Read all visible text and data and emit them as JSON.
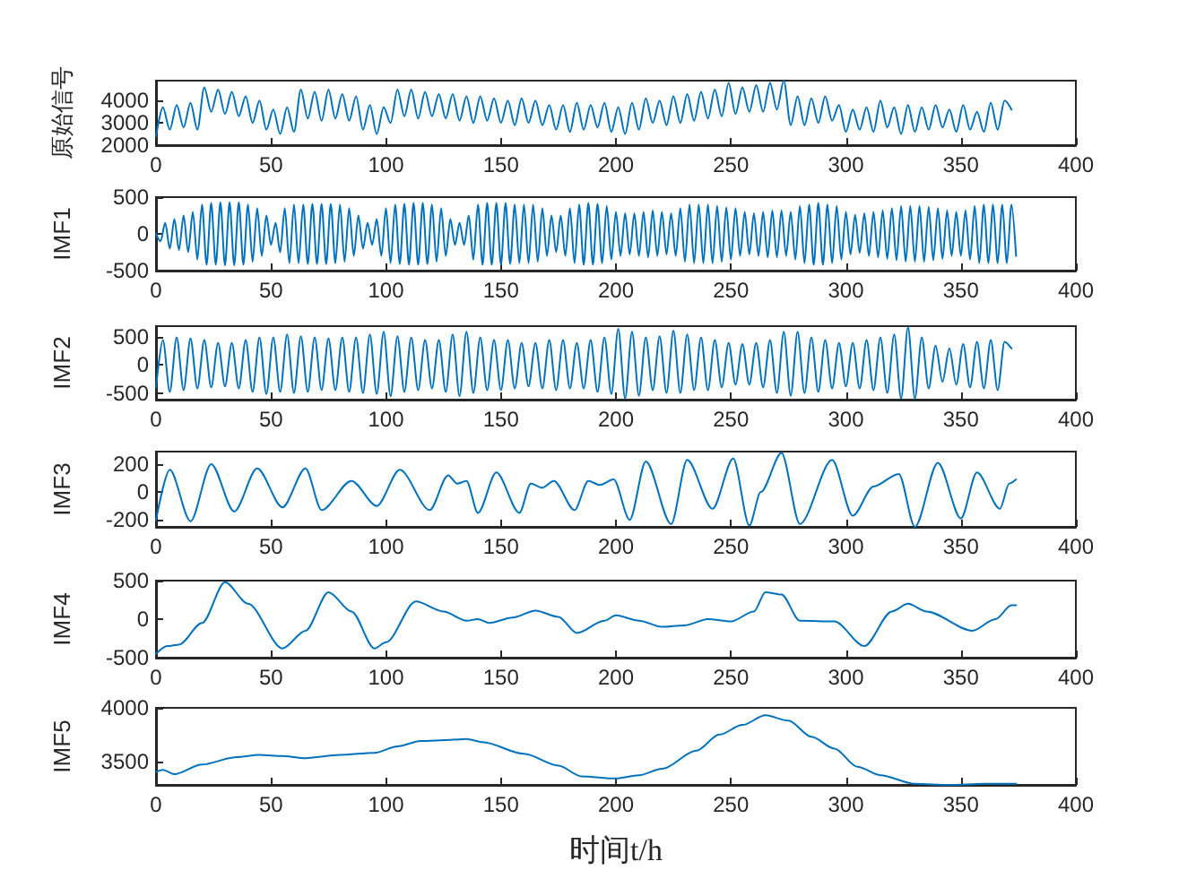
{
  "chart_data": [
    {
      "type": "line",
      "ylabel": "原始信号",
      "color": "#0072bd",
      "marker": "none",
      "xlim": [
        0,
        400
      ],
      "xticks": [
        0,
        50,
        100,
        150,
        200,
        250,
        300,
        350,
        400
      ],
      "ylim": [
        2000,
        4900
      ],
      "yticks": [
        2000,
        3000,
        4000
      ],
      "x": [
        0,
        3,
        6,
        9,
        12,
        15,
        18,
        21,
        24,
        27,
        30,
        33,
        36,
        39,
        42,
        45,
        48,
        51,
        54,
        57,
        60,
        63,
        66,
        69,
        72,
        75,
        78,
        81,
        84,
        87,
        90,
        93,
        96,
        99,
        102,
        105,
        108,
        111,
        114,
        117,
        120,
        123,
        126,
        129,
        132,
        135,
        138,
        141,
        144,
        147,
        150,
        153,
        156,
        159,
        162,
        165,
        168,
        171,
        174,
        177,
        180,
        183,
        186,
        189,
        192,
        195,
        198,
        201,
        204,
        207,
        210,
        213,
        216,
        219,
        222,
        225,
        228,
        231,
        234,
        237,
        240,
        243,
        246,
        249,
        252,
        255,
        258,
        261,
        264,
        267,
        270,
        273,
        276,
        279,
        282,
        285,
        288,
        291,
        294,
        297,
        300,
        303,
        306,
        309,
        312,
        315,
        318,
        321,
        324,
        327,
        330,
        333,
        336,
        339,
        342,
        345,
        348,
        351,
        354,
        357,
        360,
        363,
        366,
        369,
        372
      ],
      "values": [
        2400,
        3700,
        2700,
        3800,
        2800,
        3900,
        2700,
        4600,
        3500,
        4500,
        3400,
        4400,
        3300,
        4200,
        3000,
        4000,
        2700,
        3600,
        2500,
        3700,
        2600,
        4500,
        3200,
        4400,
        3100,
        4500,
        3200,
        4300,
        3100,
        4200,
        2700,
        3800,
        2500,
        3700,
        3000,
        4500,
        3300,
        4500,
        3200,
        4400,
        3300,
        4300,
        3200,
        4300,
        3100,
        4200,
        3000,
        4200,
        3100,
        4100,
        3000,
        4000,
        2900,
        4100,
        3000,
        4000,
        2900,
        3800,
        2700,
        3800,
        2600,
        3900,
        2700,
        3800,
        2800,
        3900,
        2600,
        3700,
        2500,
        3900,
        2700,
        4100,
        3000,
        4000,
        2900,
        4200,
        3000,
        4300,
        3100,
        4400,
        3200,
        4500,
        3300,
        4800,
        3400,
        4600,
        3500,
        4700,
        3500,
        4800,
        3600,
        4900,
        2900,
        4200,
        2900,
        4100,
        3000,
        4200,
        3100,
        3800,
        2600,
        3600,
        2700,
        3700,
        2600,
        4000,
        2800,
        3700,
        2500,
        3800,
        2600,
        3700,
        2700,
        3800,
        2800,
        3600,
        2600,
        3800,
        2700,
        3500,
        2600,
        3900,
        2700,
        4000,
        3600
      ]
    },
    {
      "type": "line",
      "ylabel": "IMF1",
      "color": "#0072bd",
      "marker": "none",
      "xlim": [
        0,
        400
      ],
      "xticks": [
        0,
        50,
        100,
        150,
        200,
        250,
        300,
        350,
        400
      ],
      "ylim": [
        -500,
        500
      ],
      "yticks": [
        -500,
        0,
        500
      ],
      "x": [
        0,
        2,
        4,
        6,
        8,
        10,
        12,
        14,
        16,
        18,
        20,
        22,
        24,
        26,
        28,
        30,
        32,
        34,
        36,
        38,
        40,
        42,
        44,
        46,
        48,
        50,
        52,
        54,
        56,
        58,
        60,
        62,
        64,
        66,
        68,
        70,
        72,
        74,
        76,
        78,
        80,
        82,
        84,
        86,
        88,
        90,
        92,
        94,
        96,
        98,
        100,
        102,
        104,
        106,
        108,
        110,
        112,
        114,
        116,
        118,
        120,
        122,
        124,
        126,
        128,
        130,
        132,
        134,
        136,
        138,
        140,
        142,
        144,
        146,
        148,
        150,
        152,
        154,
        156,
        158,
        160,
        162,
        164,
        166,
        168,
        170,
        172,
        174,
        176,
        178,
        180,
        182,
        184,
        186,
        188,
        190,
        192,
        194,
        196,
        198,
        200,
        202,
        204,
        206,
        208,
        210,
        212,
        214,
        216,
        218,
        220,
        222,
        224,
        226,
        228,
        230,
        232,
        234,
        236,
        238,
        240,
        242,
        244,
        246,
        248,
        250,
        252,
        254,
        256,
        258,
        260,
        262,
        264,
        266,
        268,
        270,
        272,
        274,
        276,
        278,
        280,
        282,
        284,
        286,
        288,
        290,
        292,
        294,
        296,
        298,
        300,
        302,
        304,
        306,
        308,
        310,
        312,
        314,
        316,
        318,
        320,
        322,
        324,
        326,
        328,
        330,
        332,
        334,
        336,
        338,
        340,
        342,
        344,
        346,
        348,
        350,
        352,
        354,
        356,
        358,
        360,
        362,
        364,
        366,
        368,
        370,
        372,
        374
      ],
      "values": [
        0,
        -100,
        150,
        -200,
        200,
        -220,
        250,
        -250,
        300,
        -350,
        400,
        -420,
        420,
        -420,
        430,
        -430,
        430,
        -430,
        430,
        -420,
        400,
        -380,
        350,
        -300,
        250,
        -150,
        150,
        -250,
        350,
        -400,
        400,
        -400,
        400,
        -410,
        410,
        -410,
        410,
        -410,
        410,
        -400,
        400,
        -380,
        350,
        -300,
        250,
        -200,
        150,
        -150,
        200,
        -300,
        350,
        -400,
        400,
        -410,
        410,
        -420,
        420,
        -420,
        420,
        -410,
        400,
        -380,
        350,
        -300,
        200,
        -150,
        150,
        -150,
        250,
        -350,
        400,
        -420,
        420,
        -420,
        420,
        -420,
        420,
        -410,
        400,
        -400,
        400,
        -400,
        400,
        -380,
        350,
        -300,
        250,
        -250,
        250,
        -300,
        350,
        -400,
        400,
        -420,
        420,
        -420,
        410,
        -400,
        380,
        -350,
        300,
        -300,
        280,
        -280,
        280,
        -300,
        300,
        -320,
        320,
        -300,
        300,
        -280,
        280,
        -300,
        350,
        -380,
        400,
        -400,
        400,
        -400,
        400,
        -400,
        380,
        -380,
        360,
        -350,
        350,
        -300,
        300,
        -280,
        280,
        -300,
        300,
        -320,
        320,
        -320,
        320,
        -300,
        300,
        -350,
        380,
        -400,
        400,
        -420,
        420,
        -420,
        400,
        -400,
        380,
        -350,
        300,
        -280,
        260,
        -260,
        280,
        -300,
        300,
        -320,
        320,
        -340,
        350,
        -360,
        380,
        -380,
        380,
        -380,
        380,
        -380,
        370,
        -360,
        350,
        -340,
        320,
        -300,
        300,
        -300,
        320,
        -350,
        380,
        -400,
        400,
        -400,
        400,
        -400,
        400,
        -400,
        400,
        -300
      ]
    },
    {
      "type": "line",
      "ylabel": "IMF2",
      "color": "#0072bd",
      "marker": "none",
      "xlim": [
        0,
        400
      ],
      "xticks": [
        0,
        50,
        100,
        150,
        200,
        250,
        300,
        350,
        400
      ],
      "ylim": [
        -620,
        700
      ],
      "yticks": [
        -500,
        0,
        500
      ],
      "x": [
        0,
        3,
        6,
        9,
        12,
        15,
        18,
        21,
        24,
        27,
        30,
        33,
        36,
        39,
        42,
        45,
        48,
        51,
        54,
        57,
        60,
        63,
        66,
        69,
        72,
        75,
        78,
        81,
        84,
        87,
        90,
        93,
        96,
        99,
        102,
        105,
        108,
        111,
        114,
        117,
        120,
        123,
        126,
        129,
        132,
        135,
        138,
        141,
        144,
        147,
        150,
        153,
        156,
        159,
        162,
        165,
        168,
        171,
        174,
        177,
        180,
        183,
        186,
        189,
        192,
        195,
        198,
        201,
        204,
        207,
        210,
        213,
        216,
        219,
        222,
        225,
        228,
        231,
        234,
        237,
        240,
        243,
        246,
        249,
        252,
        255,
        258,
        261,
        264,
        267,
        270,
        273,
        276,
        279,
        282,
        285,
        288,
        291,
        294,
        297,
        300,
        303,
        306,
        309,
        312,
        315,
        318,
        321,
        324,
        327,
        330,
        333,
        336,
        339,
        342,
        345,
        348,
        351,
        354,
        357,
        360,
        363,
        366,
        369,
        372
      ],
      "values": [
        -400,
        450,
        -480,
        500,
        -450,
        480,
        -420,
        450,
        -400,
        400,
        -380,
        400,
        -420,
        450,
        -480,
        500,
        -520,
        500,
        -480,
        550,
        -500,
        520,
        -480,
        500,
        -450,
        480,
        -450,
        500,
        -480,
        500,
        -500,
        550,
        -520,
        600,
        -560,
        520,
        -480,
        500,
        -450,
        450,
        -420,
        450,
        -480,
        550,
        -560,
        600,
        -500,
        500,
        -450,
        450,
        -450,
        450,
        -420,
        400,
        -380,
        400,
        -420,
        450,
        -450,
        450,
        -420,
        400,
        -420,
        450,
        -480,
        500,
        -520,
        650,
        -600,
        600,
        -550,
        500,
        -450,
        520,
        -500,
        620,
        -500,
        550,
        -450,
        500,
        -450,
        450,
        -400,
        400,
        -350,
        380,
        -350,
        400,
        -400,
        450,
        -500,
        600,
        -550,
        600,
        -500,
        500,
        -480,
        450,
        -420,
        400,
        -380,
        400,
        -420,
        450,
        -450,
        500,
        -500,
        550,
        -600,
        680,
        -600,
        500,
        -420,
        350,
        -300,
        300,
        -350,
        380,
        -400,
        420,
        -420,
        450,
        -450,
        420,
        300
      ]
    },
    {
      "type": "line",
      "ylabel": "IMF3",
      "color": "#0072bd",
      "marker": "none",
      "xlim": [
        0,
        400
      ],
      "xticks": [
        0,
        50,
        100,
        150,
        200,
        250,
        300,
        350,
        400
      ],
      "ylim": [
        -250,
        290
      ],
      "yticks": [
        -200,
        0,
        200
      ],
      "x": [
        0,
        6,
        15,
        24,
        34,
        44,
        55,
        65,
        72,
        85,
        96,
        106,
        119,
        127,
        131,
        135,
        140,
        148,
        158,
        163,
        168,
        173,
        182,
        188,
        193,
        199,
        206,
        213,
        224,
        231,
        242,
        251,
        258,
        263,
        272,
        280,
        294,
        303,
        312,
        323,
        330,
        340,
        350,
        357,
        367,
        371,
        374
      ],
      "values": [
        -200,
        160,
        -210,
        200,
        -140,
        170,
        -110,
        170,
        -130,
        80,
        -100,
        160,
        -130,
        120,
        60,
        80,
        -150,
        140,
        -150,
        60,
        30,
        80,
        -130,
        80,
        50,
        90,
        -200,
        220,
        -230,
        230,
        -120,
        240,
        -240,
        0,
        280,
        -230,
        230,
        -170,
        40,
        130,
        -250,
        210,
        -190,
        140,
        -120,
        60,
        90
      ]
    },
    {
      "type": "line",
      "ylabel": "IMF4",
      "color": "#0072bd",
      "marker": "none",
      "xlim": [
        0,
        400
      ],
      "xticks": [
        0,
        50,
        100,
        150,
        200,
        250,
        300,
        350,
        400
      ],
      "ylim": [
        -500,
        500
      ],
      "yticks": [
        -500,
        0,
        500
      ],
      "x": [
        0,
        5,
        10,
        20,
        30,
        40,
        55,
        65,
        75,
        85,
        95,
        100,
        113,
        125,
        135,
        140,
        145,
        155,
        165,
        175,
        183,
        195,
        200,
        210,
        220,
        230,
        240,
        250,
        260,
        265,
        272,
        280,
        295,
        308,
        320,
        327,
        335,
        355,
        365,
        372,
        374
      ],
      "values": [
        -450,
        -350,
        -330,
        -50,
        480,
        200,
        -380,
        -150,
        350,
        100,
        -380,
        -300,
        230,
        100,
        -20,
        0,
        -50,
        20,
        110,
        30,
        -180,
        -20,
        50,
        -20,
        -100,
        -80,
        0,
        -30,
        100,
        350,
        320,
        -20,
        -30,
        -350,
        100,
        200,
        100,
        -150,
        0,
        180,
        180
      ]
    },
    {
      "type": "line",
      "ylabel": "IMF5",
      "xlabel": "时间t/h",
      "color": "#0072bd",
      "marker": "none",
      "xlim": [
        0,
        400
      ],
      "xticks": [
        0,
        50,
        100,
        150,
        200,
        250,
        300,
        350,
        400
      ],
      "ylim": [
        3280,
        4000
      ],
      "yticks": [
        3500,
        4000
      ],
      "x": [
        0,
        3,
        8,
        20,
        35,
        45,
        55,
        65,
        80,
        95,
        105,
        115,
        128,
        135,
        142,
        160,
        175,
        185,
        200,
        210,
        220,
        235,
        245,
        255,
        265,
        275,
        285,
        295,
        305,
        315,
        330,
        345,
        360,
        374
      ],
      "values": [
        3400,
        3420,
        3380,
        3470,
        3540,
        3560,
        3550,
        3530,
        3560,
        3580,
        3640,
        3690,
        3700,
        3710,
        3680,
        3570,
        3460,
        3360,
        3340,
        3370,
        3430,
        3600,
        3750,
        3840,
        3930,
        3880,
        3730,
        3620,
        3450,
        3370,
        3290,
        3280,
        3290,
        3290
      ]
    }
  ]
}
